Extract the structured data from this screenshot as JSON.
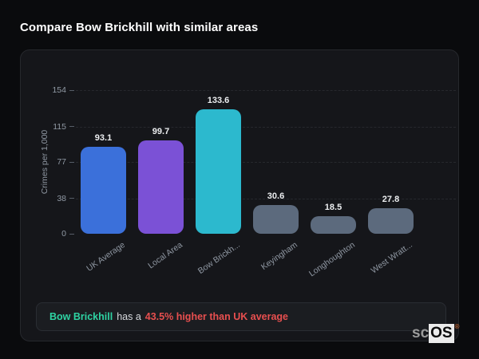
{
  "page": {
    "title": "Compare Bow Brickhill with similar areas"
  },
  "chart_data": {
    "type": "bar",
    "title": "Compare Bow Brickhill with similar areas",
    "categories": [
      "UK Average",
      "Local Area",
      "Bow Brickh...",
      "Keyingham",
      "Longhoughton",
      "West Wratt..."
    ],
    "values": [
      93.1,
      99.7,
      133.6,
      30.6,
      18.5,
      27.8
    ],
    "value_labels": [
      "93.1",
      "99.7",
      "133.6",
      "30.6",
      "18.5",
      "27.8"
    ],
    "bar_colors": [
      "#3b70da",
      "#7b51d6",
      "#2cb9ce",
      "#5c6a7d",
      "#5c6a7d",
      "#5c6a7d"
    ],
    "xlabel": "",
    "ylabel": "Crimes per 1,000",
    "yticks": [
      0,
      38,
      77,
      115,
      154
    ],
    "ylim": [
      0,
      154
    ],
    "grid": "horizontal-dashed",
    "legend": "none"
  },
  "summary": {
    "area_name": "Bow Brickhill",
    "connector": "has a",
    "stat": "43.5% higher than UK average",
    "area_color": "#2ed3a3",
    "stat_color": "#e84f4f"
  },
  "logo": {
    "prefix": "sc",
    "suffix": "OS",
    "registered": "®"
  },
  "theme": {
    "page_bg": "#0a0b0d",
    "card_bg": "#15161a",
    "card_border": "#26282d",
    "summary_bg": "#1b1d21",
    "summary_border": "#2a2d33",
    "grid_color": "#26282d",
    "text_primary": "#ffffff",
    "text_muted": "#8f97a2"
  }
}
